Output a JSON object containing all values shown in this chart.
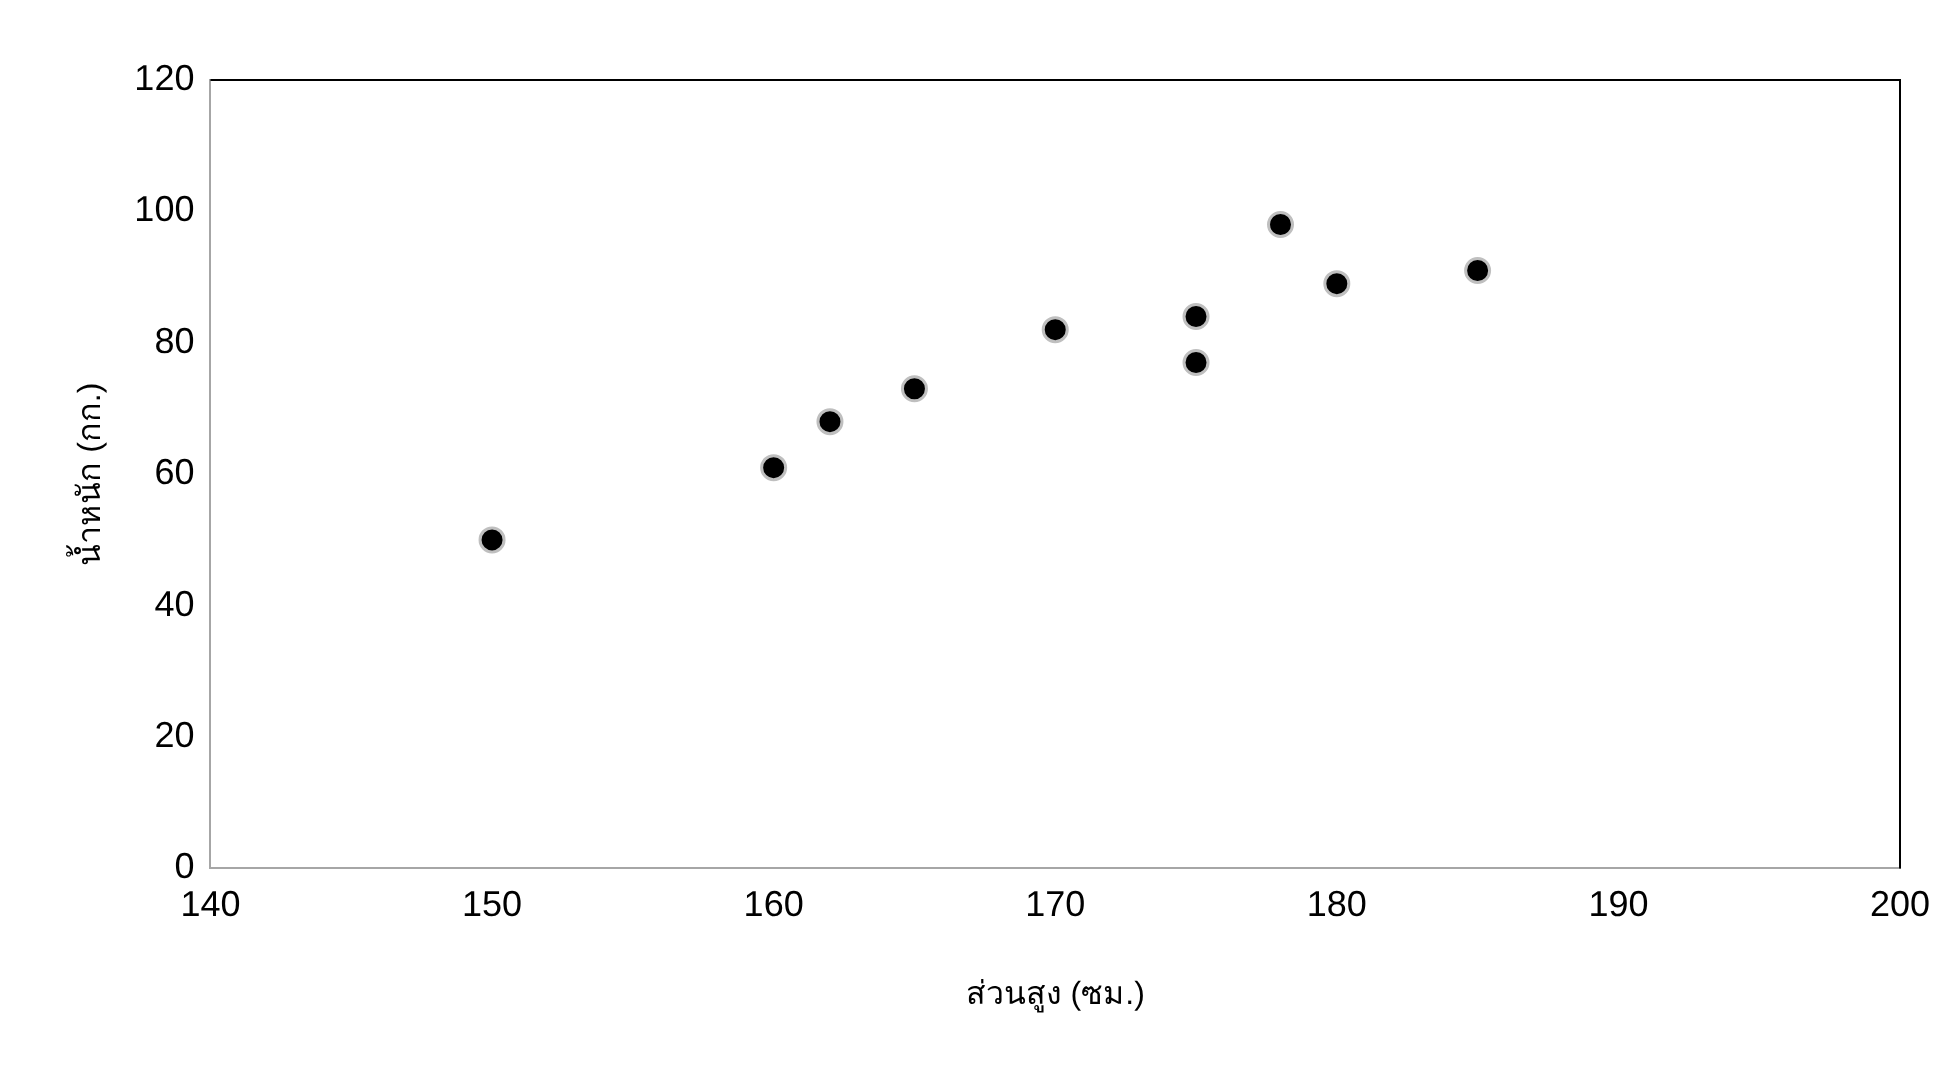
{
  "chart_data": {
    "type": "scatter",
    "xlabel": "ส่วนสูง (ซม.)",
    "ylabel": "น้ำหนัก (กก.)",
    "x": [
      150,
      160,
      162,
      165,
      170,
      175,
      175,
      178,
      180,
      185
    ],
    "values": [
      50,
      61,
      68,
      73,
      82,
      84,
      77,
      98,
      89,
      91
    ],
    "color": "#000000",
    "marker": "circle",
    "xlim": [
      140,
      200
    ],
    "xticks": [
      140,
      150,
      160,
      170,
      180,
      190,
      200
    ],
    "ylim": [
      0,
      120
    ],
    "yticks": [
      0,
      20,
      40,
      60,
      80,
      100,
      120
    ],
    "grid": false,
    "legend": false
  }
}
